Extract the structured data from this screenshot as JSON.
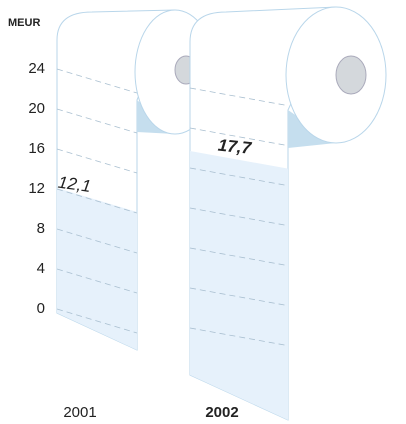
{
  "chart_data": {
    "type": "bar",
    "y_label": "MEUR",
    "categories": [
      "2001",
      "2002"
    ],
    "values": [
      12.1,
      17.7
    ],
    "value_labels": [
      "12,1",
      "17,7"
    ],
    "color": "#e6f1fb",
    "ylim": [
      0,
      28
    ],
    "yticks": [
      0,
      4,
      8,
      12,
      16,
      20,
      24
    ],
    "grid": true
  }
}
